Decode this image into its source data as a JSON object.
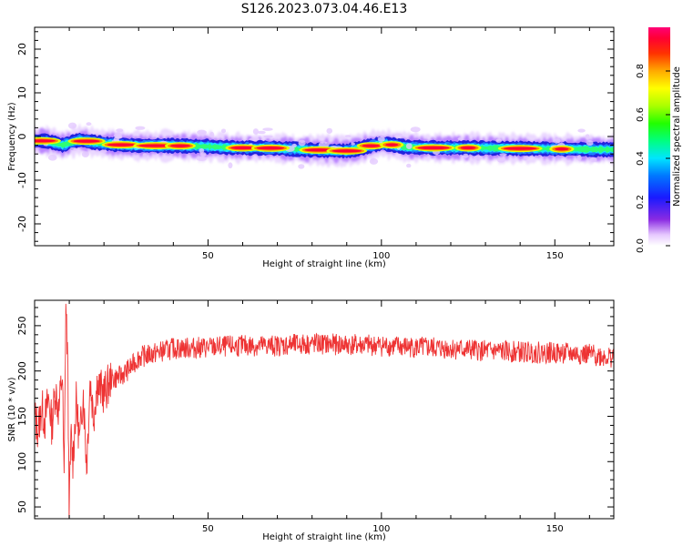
{
  "title": "S126.2023.073.04.46.E13",
  "chart_data": [
    {
      "type": "heatmap",
      "xlabel": "Height of straight line (km)",
      "ylabel": "Frequency (Hz)",
      "xlim": [
        0,
        167
      ],
      "ylim": [
        -25,
        25
      ],
      "x_ticks": [
        50,
        100,
        150
      ],
      "y_ticks": [
        20,
        10,
        0,
        -10,
        -20
      ],
      "y_tick_labels": [
        "20",
        "10",
        "0",
        "-10",
        "-20"
      ],
      "colorbar": {
        "label": "Normalized spectral amplitude",
        "range": [
          0,
          1
        ],
        "ticks": [
          0.0,
          0.2,
          0.4,
          0.6,
          0.8
        ],
        "tick_labels": [
          "0.0",
          "0.2",
          "0.4",
          "0.6",
          "0.8"
        ]
      },
      "ridge": {
        "x": [
          0,
          3,
          6,
          8,
          10,
          13,
          16,
          20,
          25,
          30,
          40,
          50,
          55,
          60,
          65,
          70,
          75,
          80,
          82,
          85,
          90,
          93,
          96,
          100,
          103,
          107,
          115,
          125,
          135,
          145,
          155,
          165,
          167
        ],
        "center": [
          -1,
          -1,
          -1.5,
          -2,
          -1.5,
          -0.8,
          -1.2,
          -1.6,
          -1.9,
          -2.1,
          -2.1,
          -2.3,
          -2.5,
          -2.6,
          -2.6,
          -2.7,
          -2.9,
          -3.1,
          -3.1,
          -3.2,
          -3.3,
          -2.9,
          -2.3,
          -1.6,
          -1.9,
          -2.4,
          -2.6,
          -2.6,
          -2.7,
          -2.8,
          -2.9,
          -3.0,
          -3.0
        ],
        "peak_x": [
          2,
          15,
          25,
          35,
          42,
          60,
          68,
          82,
          90,
          97,
          103,
          115,
          125,
          140,
          152
        ]
      }
    },
    {
      "type": "line",
      "xlabel": "Height of straight line (km)",
      "ylabel": "SNR (10 * v/v)",
      "xlim": [
        0,
        167
      ],
      "ylim": [
        37,
        278
      ],
      "x_ticks": [
        50,
        100,
        150
      ],
      "y_ticks": [
        50,
        100,
        150,
        200,
        250
      ],
      "y_tick_labels": [
        "50",
        "100",
        "150",
        "200",
        "250"
      ],
      "series": [
        {
          "color": "#ee3333",
          "x": [
            0,
            1,
            2,
            3,
            4,
            5,
            6,
            7,
            8,
            8.5,
            9,
            9.5,
            10,
            10.5,
            11,
            12,
            13,
            14,
            15,
            16,
            17,
            18,
            20,
            22,
            25,
            28,
            30,
            35,
            40,
            50,
            60,
            70,
            80,
            90,
            100,
            110,
            120,
            130,
            140,
            150,
            160,
            167
          ],
          "y": [
            150,
            135,
            160,
            145,
            170,
            140,
            180,
            155,
            200,
            70,
            275,
            220,
            45,
            130,
            100,
            165,
            120,
            180,
            95,
            190,
            150,
            185,
            175,
            190,
            195,
            205,
            215,
            220,
            225,
            226,
            228,
            228,
            230,
            229,
            228,
            226,
            225,
            222,
            221,
            220,
            218,
            215
          ],
          "noise": 12
        }
      ]
    }
  ]
}
